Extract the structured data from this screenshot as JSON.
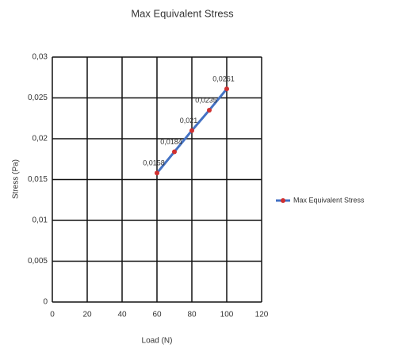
{
  "chart_data": {
    "type": "line",
    "title": "Max Equivalent Stress",
    "x_label": "Load (N)",
    "y_label": "Stress (Pa)",
    "x": [
      60,
      70,
      80,
      90,
      100
    ],
    "series": [
      {
        "name": "Max Equivalent Stress",
        "color": "#4472c4",
        "marker_color": "#d03030",
        "values": [
          0.0158,
          0.0184,
          0.021,
          0.0235,
          0.0261
        ],
        "value_labels": [
          "0,0158",
          "0,0184",
          "0,021",
          "0,0235",
          "0,0261"
        ]
      }
    ],
    "xlim": [
      0,
      120
    ],
    "xticks": [
      0,
      20,
      40,
      60,
      80,
      100,
      120
    ],
    "ylim": [
      0,
      0.03
    ],
    "yticks": [
      0,
      {
        "value": 0.005,
        "label": "0,005"
      },
      {
        "value": 0.01,
        "label": "0,01"
      },
      {
        "value": 0.015,
        "label": "0,015"
      },
      {
        "value": 0.02,
        "label": "0,02"
      },
      {
        "value": 0.025,
        "label": "0,025"
      },
      {
        "value": 0.03,
        "label": "0,03"
      }
    ],
    "grid": true,
    "legend": "right"
  }
}
